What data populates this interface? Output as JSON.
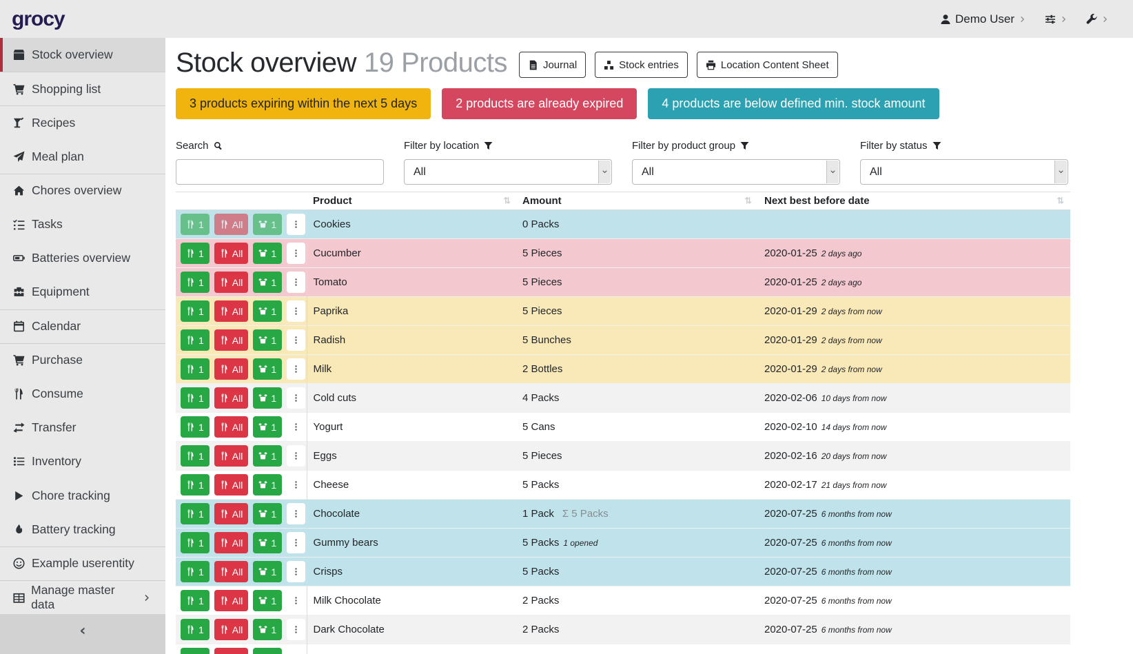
{
  "app": {
    "logo": "grocy"
  },
  "topbar": {
    "user": {
      "icon": "user-icon",
      "label": "Demo User"
    },
    "settings_icon": "sliders-icon",
    "admin_icon": "wrench-icon",
    "chevron_icon": "chevron-right-icon"
  },
  "sidebar": {
    "items": [
      {
        "label": "Stock overview",
        "icon": "box-icon",
        "active": true
      },
      {
        "label": "Shopping list",
        "icon": "cart-icon",
        "divider": true
      },
      {
        "label": "Recipes",
        "icon": "cocktail-icon",
        "divider": true
      },
      {
        "label": "Meal plan",
        "icon": "paper-plane-icon"
      },
      {
        "label": "Chores overview",
        "icon": "home-icon",
        "divider": true
      },
      {
        "label": "Tasks",
        "icon": "tasks-icon"
      },
      {
        "label": "Batteries overview",
        "icon": "battery-icon"
      },
      {
        "label": "Equipment",
        "icon": "toolbox-icon"
      },
      {
        "label": "Calendar",
        "icon": "calendar-icon",
        "divider": true
      },
      {
        "label": "Purchase",
        "icon": "cart-icon",
        "divider": true
      },
      {
        "label": "Consume",
        "icon": "utensils-icon"
      },
      {
        "label": "Transfer",
        "icon": "exchange-icon"
      },
      {
        "label": "Inventory",
        "icon": "list-icon"
      },
      {
        "label": "Chore tracking",
        "icon": "play-icon"
      },
      {
        "label": "Battery tracking",
        "icon": "fire-icon"
      },
      {
        "label": "Example userentity",
        "icon": "smiley-icon",
        "divider": true
      },
      {
        "label": "Manage master data",
        "icon": "table-icon",
        "divider": true,
        "submenu": true
      }
    ],
    "collapse_glyph": "‹"
  },
  "header": {
    "title": "Stock overview",
    "subtitle": "19 Products",
    "buttons": [
      {
        "label": "Journal",
        "icon": "file-icon"
      },
      {
        "label": "Stock entries",
        "icon": "boxes-icon"
      },
      {
        "label": "Location Content Sheet",
        "icon": "print-icon"
      }
    ]
  },
  "banners": [
    {
      "text": "3 products expiring within the next 5 days",
      "type": "warning",
      "bg": "#f1b30e",
      "fg": "#212529"
    },
    {
      "text": "2 products are already expired",
      "type": "danger",
      "bg": "#d5465f",
      "fg": "#ffffff"
    },
    {
      "text": "4 products are below defined min. stock amount",
      "type": "info",
      "bg": "#2ba1b1",
      "fg": "#ffffff"
    }
  ],
  "filters": {
    "search": {
      "label": "Search",
      "icon": "search-icon",
      "value": ""
    },
    "location": {
      "label": "Filter by location",
      "icon": "filter-icon",
      "value": "All"
    },
    "product_group": {
      "label": "Filter by product group",
      "icon": "filter-icon",
      "value": "All"
    },
    "status": {
      "label": "Filter by status",
      "icon": "filter-icon",
      "value": "All"
    }
  },
  "table": {
    "sort_glyph": "⇅",
    "columns": [
      {
        "label": ""
      },
      {
        "label": "Product",
        "sortable": true
      },
      {
        "label": "Amount",
        "sortable": true
      },
      {
        "label": "Next best before date",
        "sortable": true
      }
    ],
    "row_buttons": {
      "consume_one": "1",
      "consume_all": "All",
      "open_one": "1"
    },
    "rows": [
      {
        "product": "Cookies",
        "amount": "0 Packs",
        "amount_sum": "",
        "amount_opened": "",
        "date": "",
        "date_ago": "",
        "status": "info",
        "disabled": true,
        "partial": false
      },
      {
        "product": "Cucumber",
        "amount": "5 Pieces",
        "amount_sum": "",
        "amount_opened": "",
        "date": "2020-01-25",
        "date_ago": "2 days ago",
        "status": "danger",
        "disabled": false,
        "partial": false
      },
      {
        "product": "Tomato",
        "amount": "5 Pieces",
        "amount_sum": "",
        "amount_opened": "",
        "date": "2020-01-25",
        "date_ago": "2 days ago",
        "status": "danger",
        "disabled": false,
        "partial": false
      },
      {
        "product": "Paprika",
        "amount": "5 Pieces",
        "amount_sum": "",
        "amount_opened": "",
        "date": "2020-01-29",
        "date_ago": "2 days from now",
        "status": "warning",
        "disabled": false,
        "partial": false
      },
      {
        "product": "Radish",
        "amount": "5 Bunches",
        "amount_sum": "",
        "amount_opened": "",
        "date": "2020-01-29",
        "date_ago": "2 days from now",
        "status": "warning",
        "disabled": false,
        "partial": false
      },
      {
        "product": "Milk",
        "amount": "2 Bottles",
        "amount_sum": "",
        "amount_opened": "",
        "date": "2020-01-29",
        "date_ago": "2 days from now",
        "status": "warning",
        "disabled": false,
        "partial": false
      },
      {
        "product": "Cold cuts",
        "amount": "4 Packs",
        "amount_sum": "",
        "amount_opened": "",
        "date": "2020-02-06",
        "date_ago": "10 days from now",
        "status": "stripe",
        "disabled": false,
        "partial": false
      },
      {
        "product": "Yogurt",
        "amount": "5 Cans",
        "amount_sum": "",
        "amount_opened": "",
        "date": "2020-02-10",
        "date_ago": "14 days from now",
        "status": "none",
        "disabled": false,
        "partial": false
      },
      {
        "product": "Eggs",
        "amount": "5 Pieces",
        "amount_sum": "",
        "amount_opened": "",
        "date": "2020-02-16",
        "date_ago": "20 days from now",
        "status": "stripe",
        "disabled": false,
        "partial": false
      },
      {
        "product": "Cheese",
        "amount": "5 Packs",
        "amount_sum": "",
        "amount_opened": "",
        "date": "2020-02-17",
        "date_ago": "21 days from now",
        "status": "none",
        "disabled": false,
        "partial": false
      },
      {
        "product": "Chocolate",
        "amount": "1 Pack",
        "amount_sum": "Σ 5 Packs",
        "amount_opened": "",
        "date": "2020-07-25",
        "date_ago": "6 months from now",
        "status": "info",
        "disabled": false,
        "partial": false
      },
      {
        "product": "Gummy bears",
        "amount": "5 Packs",
        "amount_sum": "",
        "amount_opened": "1 opened",
        "date": "2020-07-25",
        "date_ago": "6 months from now",
        "status": "info",
        "disabled": false,
        "partial": false
      },
      {
        "product": "Crisps",
        "amount": "5 Packs",
        "amount_sum": "",
        "amount_opened": "",
        "date": "2020-07-25",
        "date_ago": "6 months from now",
        "status": "info",
        "disabled": false,
        "partial": false
      },
      {
        "product": "Milk Chocolate",
        "amount": "2 Packs",
        "amount_sum": "",
        "amount_opened": "",
        "date": "2020-07-25",
        "date_ago": "6 months from now",
        "status": "none",
        "disabled": false,
        "partial": false
      },
      {
        "product": "Dark Chocolate",
        "amount": "2 Packs",
        "amount_sum": "",
        "amount_opened": "",
        "date": "2020-07-25",
        "date_ago": "6 months from now",
        "status": "stripe",
        "disabled": false,
        "partial": false
      },
      {
        "product": "",
        "amount": "",
        "amount_sum": "",
        "amount_opened": "",
        "date": "",
        "date_ago": "",
        "status": "none",
        "disabled": false,
        "partial": true
      }
    ]
  },
  "colors": {
    "row_info": "#c0e3eb",
    "row_danger": "#f3c8cf",
    "row_warning": "#fae9b8",
    "row_stripe": "#f2f2f2",
    "btn_green": "#28a745",
    "btn_red": "#dc3545",
    "banner_warning": "#f1b30e",
    "banner_danger": "#d5465f",
    "banner_info": "#2ba1b1",
    "sidebar_active_accent": "#b02e3c",
    "logo_color": "#241d54"
  }
}
